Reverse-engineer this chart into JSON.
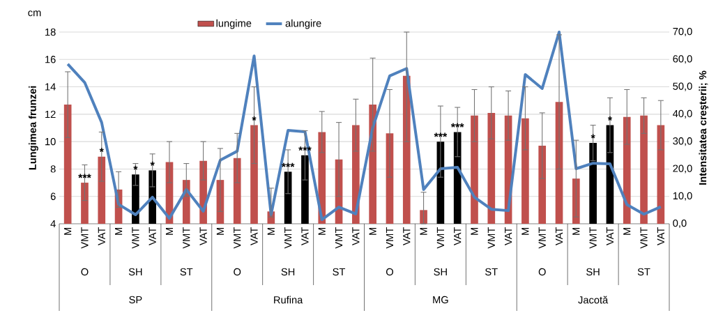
{
  "chart_data": {
    "type": "bar",
    "ylabel": "Lungimea frunzei",
    "y2label": "Intensitatea creşterii; %",
    "categories": [
      "M",
      "VMT",
      "VAT",
      "M",
      "VMT",
      "VAT",
      "M",
      "VMT",
      "VAT",
      "M",
      "VMT",
      "VAT",
      "M",
      "VMT",
      "VAT",
      "M",
      "VMT",
      "VAT",
      "M",
      "VMT",
      "VAT",
      "M",
      "VMT",
      "VAT",
      "M",
      "VMT",
      "VAT",
      "M",
      "VMT",
      "VAT",
      "M",
      "VMT",
      "VAT",
      "M",
      "VMT",
      "VAT"
    ],
    "annotations": [
      "cm",
      "O",
      "SH",
      "ST",
      "O",
      "SH",
      "ST",
      "O",
      "SH",
      "ST",
      "O",
      "SH",
      "ST",
      "SP",
      "Rufina",
      "MG",
      "Jacotă"
    ],
    "series": [
      {
        "name": "lungime",
        "color": "#c0504d",
        "colors": [
          "#c0504d",
          "#c0504d",
          "#c0504d",
          "#c0504d",
          "#000000",
          "#000000",
          "#c0504d",
          "#c0504d",
          "#c0504d",
          "#c0504d",
          "#c0504d",
          "#c0504d",
          "#c0504d",
          "#000000",
          "#000000",
          "#c0504d",
          "#c0504d",
          "#c0504d",
          "#c0504d",
          "#c0504d",
          "#c0504d",
          "#c0504d",
          "#000000",
          "#000000",
          "#c0504d",
          "#c0504d",
          "#c0504d",
          "#c0504d",
          "#c0504d",
          "#c0504d",
          "#c0504d",
          "#000000",
          "#000000",
          "#c0504d",
          "#c0504d",
          "#c0504d"
        ],
        "values": [
          12.7,
          7.0,
          8.9,
          6.5,
          7.6,
          7.9,
          8.5,
          7.2,
          8.6,
          7.2,
          8.8,
          11.2,
          4.9,
          7.8,
          9.0,
          10.7,
          8.7,
          11.2,
          12.7,
          10.6,
          14.8,
          5.0,
          10.0,
          10.7,
          11.9,
          12.1,
          11.9,
          11.7,
          9.7,
          12.9,
          7.3,
          9.9,
          11.2,
          11.8,
          11.9,
          11.2
        ],
        "errors": [
          2.4,
          1.3,
          1.8,
          1.3,
          0.8,
          1.2,
          1.5,
          1.2,
          1.4,
          2.3,
          1.8,
          2.8,
          [
            4.5,
            6.6
          ],
          1.6,
          1.8,
          1.5,
          2.7,
          1.9,
          3.4,
          3.2,
          [
            10.0,
            18.0
          ],
          [
            4.0,
            6.3
          ],
          2.6,
          1.8,
          1.9,
          1.9,
          1.8,
          2.3,
          2.4,
          4.9,
          2.8,
          1.3,
          2.0,
          2.0,
          1.3,
          1.8
        ],
        "value_labels": [
          null,
          "***",
          "*",
          null,
          "*",
          "*",
          null,
          null,
          null,
          null,
          null,
          "*",
          null,
          "***",
          "***",
          null,
          null,
          null,
          null,
          null,
          null,
          null,
          "***",
          "***",
          null,
          null,
          null,
          null,
          null,
          null,
          null,
          "*",
          "*",
          null,
          null,
          null
        ]
      },
      {
        "name": "alungire",
        "type": "line",
        "axis": "y2",
        "color": "#4f81bd",
        "values": [
          58.3,
          51.6,
          37.0,
          7.1,
          3.3,
          9.7,
          2.0,
          12.5,
          4.6,
          23.2,
          26.5,
          61.3,
          3.3,
          34.1,
          33.6,
          1.5,
          6.1,
          3.6,
          35.1,
          54.0,
          56.7,
          12.5,
          20.1,
          20.6,
          9.7,
          5.3,
          4.8,
          54.5,
          49.4,
          70.0,
          20.1,
          22.1,
          21.9,
          7.0,
          3.5,
          6.2
        ]
      }
    ],
    "ylim": [
      4,
      18
    ],
    "yticks": [
      4,
      6,
      8,
      10,
      12,
      14,
      16,
      18
    ],
    "y2lim": [
      0,
      70
    ],
    "y2ticks": [
      {
        "value": 0,
        "label": "0,0"
      },
      {
        "value": 10,
        "label": "10,0"
      },
      {
        "value": 20,
        "label": "20,0"
      },
      {
        "value": 30,
        "label": "30,0"
      },
      {
        "value": 40,
        "label": "40,0"
      },
      {
        "value": 50,
        "label": "50,0"
      },
      {
        "value": 60,
        "label": "60,0"
      },
      {
        "value": 70,
        "label": "70,0"
      }
    ],
    "grid": "y",
    "legend": "top"
  }
}
